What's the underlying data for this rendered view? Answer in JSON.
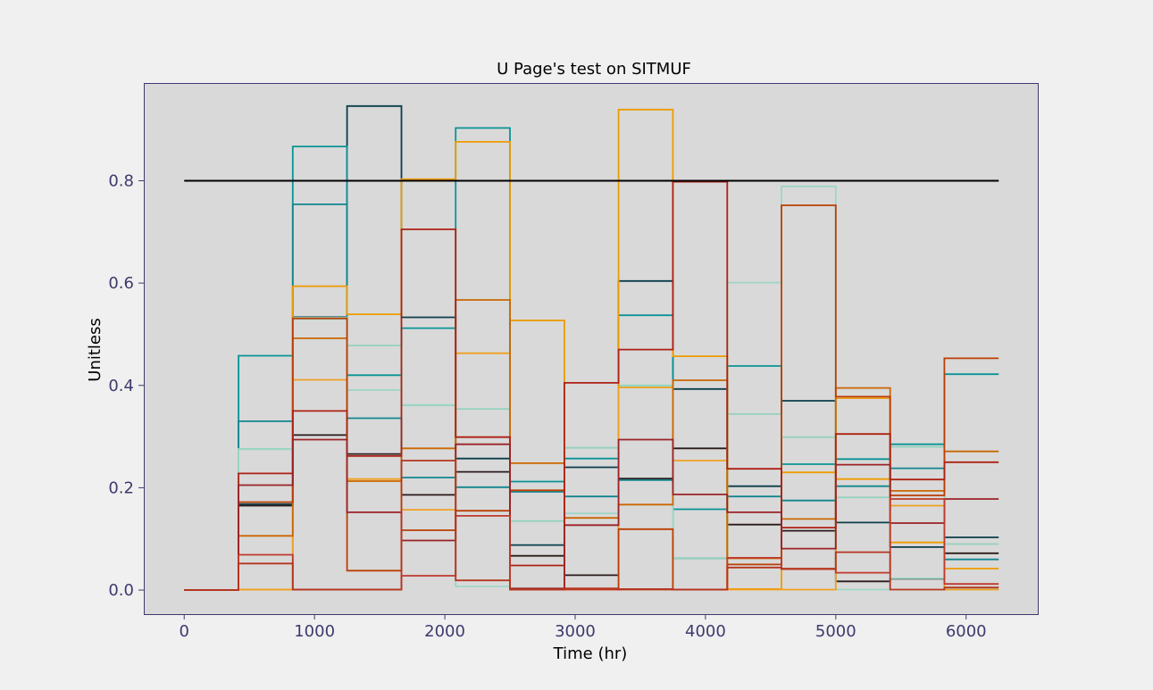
{
  "chart_data": {
    "type": "line",
    "title": "U Page's test on SITMUF",
    "xlabel": "Time (hr)",
    "ylabel": "Unitless",
    "xlim": [
      -310,
      6550
    ],
    "ylim": [
      -0.047,
      0.991
    ],
    "xticks": [
      0,
      1000,
      2000,
      3000,
      4000,
      5000,
      6000
    ],
    "xtick_labels": [
      "0",
      "1000",
      "2000",
      "3000",
      "4000",
      "5000",
      "6000"
    ],
    "yticks": [
      0.0,
      0.2,
      0.4,
      0.6,
      0.8
    ],
    "ytick_labels": [
      "0.0",
      "0.2",
      "0.4",
      "0.6",
      "0.8"
    ],
    "grid": false,
    "plot_background": "#d9d9d9",
    "figure_background": "#f0f0f0",
    "frame_color": "#3d3a6e",
    "step_edges": [
      0,
      417,
      833,
      1250,
      1667,
      2083,
      2500,
      2917,
      3333,
      3750,
      4167,
      4583,
      5000,
      5417,
      5833,
      6250
    ],
    "threshold": {
      "y": 0.8,
      "x": [
        0,
        6250
      ],
      "color": "#000000"
    },
    "series": [
      {
        "color": "#0b3d4a",
        "values": [
          0,
          0.168,
          0.534,
          0.946,
          0.533,
          0.257,
          0.088,
          0.24,
          0.604,
          0.393,
          0.203,
          0.37,
          0.132,
          0.084,
          0.103
        ]
      },
      {
        "color": "#2a1a1a",
        "values": [
          0,
          0.165,
          0.303,
          0.266,
          0.186,
          0.231,
          0.067,
          0.029,
          0.218,
          0.277,
          0.128,
          0.116,
          0.017,
          0.022,
          0.072
        ]
      },
      {
        "color": "#0a9396",
        "values": [
          0,
          0.458,
          0.867,
          0.42,
          0.512,
          0.903,
          0.212,
          0.257,
          0.537,
          0.158,
          0.438,
          0.246,
          0.256,
          0.285,
          0.422
        ]
      },
      {
        "color": "#12868e",
        "values": [
          0,
          0.33,
          0.754,
          0.336,
          0.22,
          0.201,
          0.192,
          0.183,
          0.215,
          0.062,
          0.183,
          0.175,
          0.203,
          0.238,
          0.06
        ]
      },
      {
        "color": "#94d2bd",
        "values": [
          0,
          0.276,
          0.533,
          0.478,
          0.361,
          0.354,
          0.135,
          0.278,
          0.4,
          0.062,
          0.344,
          0.299,
          0.181,
          0.28,
          0.09
        ]
      },
      {
        "color": "#9ed6c6",
        "values": [
          0,
          0.275,
          0.53,
          0.391,
          0.362,
          0.007,
          0.003,
          0.15,
          0.398,
          0.001,
          0.601,
          0.789,
          0.001,
          0.023,
          0.002
        ]
      },
      {
        "color": "#ee9b00",
        "values": [
          0,
          0.001,
          0.594,
          0.539,
          0.803,
          0.876,
          0.527,
          0.002,
          0.939,
          0.457,
          0.002,
          0.23,
          0.217,
          0.093,
          0.042
        ]
      },
      {
        "color": "#f0a020",
        "values": [
          0,
          0.001,
          0.411,
          0.217,
          0.157,
          0.463,
          0.001,
          0.001,
          0.396,
          0.253,
          0.001,
          0.001,
          0.375,
          0.165,
          0.001
        ]
      },
      {
        "color": "#ca6702",
        "values": [
          0,
          0.106,
          0.492,
          0.213,
          0.277,
          0.567,
          0.248,
          0.141,
          0.167,
          0.41,
          0.062,
          0.139,
          0.395,
          0.194,
          0.271
        ]
      },
      {
        "color": "#bb3e03",
        "values": [
          0,
          0.172,
          0.531,
          0.038,
          0.117,
          0.155,
          0.195,
          0.003,
          0.119,
          0.001,
          0.05,
          0.752,
          0.378,
          0.185,
          0.453
        ]
      },
      {
        "color": "#ae2012",
        "values": [
          0,
          0.228,
          0.35,
          0.262,
          0.705,
          0.299,
          0.048,
          0.405,
          0.47,
          0.798,
          0.237,
          0.122,
          0.305,
          0.216,
          0.25
        ]
      },
      {
        "color": "#9b2226",
        "values": [
          0,
          0.205,
          0.294,
          0.152,
          0.097,
          0.285,
          0.003,
          0.127,
          0.294,
          0.187,
          0.152,
          0.081,
          0.245,
          0.131,
          0.178
        ]
      },
      {
        "color": "#c0392b",
        "values": [
          0,
          0.069,
          0.001,
          0.001,
          0.028,
          0.145,
          0.001,
          0.001,
          0.002,
          0.001,
          0.063,
          0.041,
          0.034,
          0.178,
          0.012
        ]
      },
      {
        "color": "#b5361e",
        "values": [
          0,
          0.052,
          0.001,
          0.001,
          0.253,
          0.019,
          0.001,
          0.003,
          0.001,
          0.001,
          0.044,
          0.042,
          0.074,
          0.001,
          0.005
        ]
      }
    ]
  }
}
